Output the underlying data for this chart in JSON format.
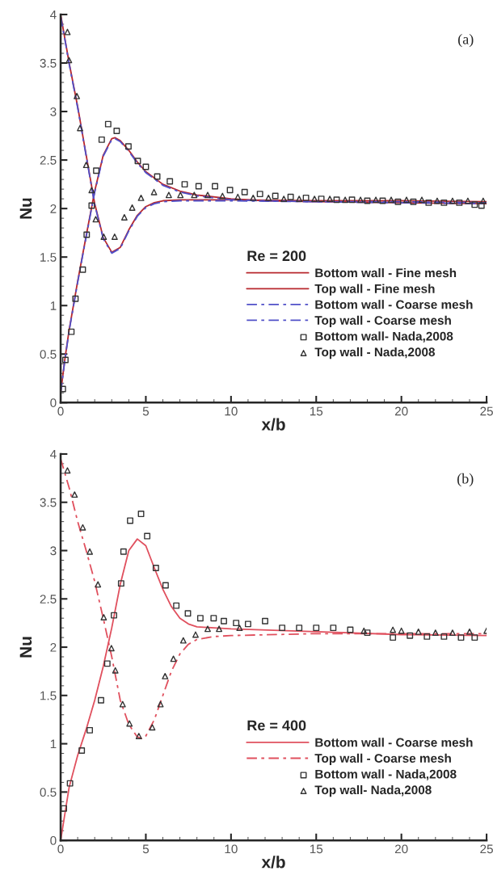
{
  "chart_data": [
    {
      "type": "line",
      "xlabel": "x/b",
      "ylabel": "Nu",
      "legend_title": "Re = 200",
      "legend": "bottom right",
      "annotations": [
        "(a)"
      ],
      "xlim": [
        0,
        25
      ],
      "ylim": [
        0,
        4
      ],
      "xticks": [
        0,
        5,
        10,
        15,
        20,
        25
      ],
      "yticks": [
        0,
        0.5,
        1,
        1.5,
        2,
        2.5,
        3,
        3.5,
        4
      ],
      "grid": false,
      "series": [
        {
          "name": "Bottom wall - Fine mesh",
          "color": "#b8282e",
          "line_style": "solid",
          "x": [
            0,
            0.25,
            0.5,
            1,
            1.5,
            2,
            2.5,
            3,
            3.2,
            3.5,
            4,
            4.5,
            5,
            6,
            7,
            8,
            10,
            12,
            15,
            20,
            25
          ],
          "values": [
            0.1,
            0.45,
            0.75,
            1.25,
            1.72,
            2.18,
            2.55,
            2.72,
            2.73,
            2.7,
            2.6,
            2.48,
            2.38,
            2.25,
            2.18,
            2.14,
            2.1,
            2.08,
            2.07,
            2.06,
            2.05
          ]
        },
        {
          "name": "Top wall - Fine mesh",
          "color": "#b8282e",
          "line_style": "solid",
          "x": [
            0,
            0.25,
            0.5,
            1,
            1.5,
            2,
            2.5,
            3,
            3.5,
            4,
            4.5,
            5,
            5.5,
            6,
            7,
            8,
            10,
            15,
            20,
            25
          ],
          "values": [
            4.0,
            3.75,
            3.5,
            3.05,
            2.55,
            2.05,
            1.7,
            1.55,
            1.6,
            1.78,
            1.93,
            2.02,
            2.06,
            2.08,
            2.09,
            2.09,
            2.09,
            2.08,
            2.08,
            2.07
          ]
        },
        {
          "name": "Bottom wall - Coarse mesh",
          "color": "#5050c8",
          "line_style": "dashed",
          "x": [
            0,
            0.25,
            0.5,
            1,
            1.5,
            2,
            2.5,
            3,
            3.2,
            3.5,
            4,
            4.5,
            5,
            6,
            7,
            8,
            10,
            12,
            15,
            20,
            25
          ],
          "values": [
            0.1,
            0.44,
            0.74,
            1.24,
            1.71,
            2.17,
            2.54,
            2.71,
            2.72,
            2.69,
            2.59,
            2.47,
            2.37,
            2.24,
            2.17,
            2.13,
            2.09,
            2.08,
            2.07,
            2.06,
            2.05
          ]
        },
        {
          "name": "Top wall - Coarse mesh",
          "color": "#5050c8",
          "line_style": "dashed",
          "x": [
            0,
            0.25,
            0.5,
            1,
            1.5,
            2,
            2.5,
            3,
            3.5,
            4,
            4.5,
            5,
            5.5,
            6,
            7,
            8,
            10,
            15,
            20,
            25
          ],
          "values": [
            3.98,
            3.74,
            3.49,
            3.04,
            2.54,
            2.04,
            1.69,
            1.54,
            1.59,
            1.77,
            1.92,
            2.01,
            2.05,
            2.07,
            2.08,
            2.08,
            2.08,
            2.07,
            2.07,
            2.06
          ]
        },
        {
          "name": "Bottom wall- Nada,2008",
          "type": "scatter",
          "marker": "square",
          "color": "#333333",
          "x": [
            0.13,
            0.28,
            0.63,
            0.87,
            1.3,
            1.53,
            1.82,
            2.09,
            2.41,
            2.79,
            3.29,
            3.98,
            4.53,
            5.0,
            5.67,
            6.41,
            7.28,
            8.1,
            9.06,
            9.94,
            10.8,
            11.7,
            12.6,
            13.5,
            14.4,
            15.3,
            16.2,
            17.1,
            18.0,
            18.9,
            19.8,
            20.7,
            21.6,
            22.5,
            23.4,
            24.3,
            24.7
          ],
          "values": [
            0.14,
            0.44,
            0.73,
            1.07,
            1.37,
            1.73,
            2.03,
            2.39,
            2.71,
            2.87,
            2.8,
            2.64,
            2.49,
            2.43,
            2.33,
            2.28,
            2.25,
            2.23,
            2.23,
            2.19,
            2.17,
            2.15,
            2.13,
            2.12,
            2.11,
            2.1,
            2.09,
            2.09,
            2.08,
            2.08,
            2.07,
            2.07,
            2.06,
            2.06,
            2.06,
            2.04,
            2.03
          ]
        },
        {
          "name": "Top wall - Nada,2008",
          "type": "scatter",
          "marker": "triangle",
          "color": "#333333",
          "x": [
            0.4,
            0.49,
            0.95,
            1.14,
            1.5,
            1.82,
            2.06,
            2.53,
            3.17,
            3.74,
            4.2,
            4.72,
            5.48,
            6.35,
            7.03,
            7.84,
            8.63,
            9.5,
            10.4,
            11.3,
            12.2,
            13.1,
            14.0,
            14.9,
            15.8,
            16.7,
            17.6,
            18.5,
            19.4,
            20.3,
            21.2,
            22.1,
            23.0,
            23.9,
            24.8
          ],
          "values": [
            3.82,
            3.53,
            3.16,
            2.83,
            2.45,
            2.19,
            1.89,
            1.71,
            1.71,
            1.91,
            2.01,
            2.11,
            2.17,
            2.14,
            2.14,
            2.14,
            2.14,
            2.13,
            2.12,
            2.11,
            2.11,
            2.1,
            2.1,
            2.1,
            2.1,
            2.09,
            2.09,
            2.09,
            2.09,
            2.09,
            2.09,
            2.08,
            2.08,
            2.08,
            2.08
          ]
        }
      ]
    },
    {
      "type": "line",
      "xlabel": "x/b",
      "ylabel": "Nu",
      "legend_title": "Re = 400",
      "legend": "bottom right",
      "annotations": [
        "(b)"
      ],
      "xlim": [
        0,
        25
      ],
      "ylim": [
        0,
        4
      ],
      "xticks": [
        0,
        5,
        10,
        15,
        20,
        25
      ],
      "yticks": [
        0,
        0.5,
        1,
        1.5,
        2,
        2.5,
        3,
        3.5,
        4
      ],
      "grid": false,
      "series": [
        {
          "name": "Bottom wall - Coarse mesh",
          "color": "#e0505e",
          "line_style": "solid",
          "x": [
            0,
            0.5,
            1,
            1.5,
            2,
            2.5,
            3,
            3.5,
            4,
            4.5,
            5,
            5.5,
            6,
            6.5,
            7,
            7.5,
            8,
            9,
            10,
            15,
            20,
            25
          ],
          "values": [
            0.0,
            0.55,
            0.88,
            1.15,
            1.45,
            1.8,
            2.2,
            2.65,
            3.0,
            3.12,
            3.05,
            2.82,
            2.6,
            2.42,
            2.3,
            2.24,
            2.21,
            2.2,
            2.19,
            2.16,
            2.13,
            2.12
          ]
        },
        {
          "name": "Top wall - Coarse mesh",
          "color": "#e0505e",
          "line_style": "dashed",
          "x": [
            0,
            0.5,
            1,
            1.5,
            2,
            2.5,
            3,
            3.5,
            4,
            4.5,
            4.8,
            5,
            5.5,
            6,
            6.5,
            7,
            7.5,
            8,
            9,
            10,
            15,
            20,
            25
          ],
          "values": [
            3.95,
            3.65,
            3.3,
            3.0,
            2.68,
            2.3,
            1.9,
            1.45,
            1.2,
            1.07,
            1.05,
            1.08,
            1.25,
            1.5,
            1.75,
            1.93,
            2.03,
            2.08,
            2.11,
            2.12,
            2.14,
            2.14,
            2.14
          ]
        },
        {
          "name": "Bottom wall - Nada,2008",
          "type": "scatter",
          "marker": "square",
          "color": "#333333",
          "x": [
            0.19,
            0.55,
            1.24,
            1.71,
            2.37,
            2.74,
            3.13,
            3.55,
            3.69,
            4.08,
            4.72,
            5.08,
            5.59,
            6.16,
            6.79,
            7.47,
            8.2,
            8.98,
            9.58,
            10.3,
            11.0,
            12.0,
            13.0,
            14.0,
            15.0,
            16.0,
            17.0,
            18.0,
            19.5,
            20.5,
            21.5,
            22.5,
            23.5,
            24.3
          ],
          "values": [
            0.33,
            0.59,
            0.93,
            1.14,
            1.45,
            1.83,
            2.33,
            2.66,
            2.99,
            3.31,
            3.38,
            3.15,
            2.82,
            2.64,
            2.43,
            2.35,
            2.3,
            2.3,
            2.27,
            2.25,
            2.24,
            2.27,
            2.2,
            2.2,
            2.2,
            2.2,
            2.18,
            2.15,
            2.1,
            2.12,
            2.11,
            2.11,
            2.1,
            2.1
          ]
        },
        {
          "name": "Top wall- Nada,2008",
          "type": "scatter",
          "marker": "triangle",
          "color": "#333333",
          "x": [
            0.4,
            0.82,
            1.3,
            1.71,
            2.19,
            2.53,
            2.98,
            3.21,
            3.64,
            4.04,
            4.59,
            5.38,
            5.86,
            6.13,
            6.62,
            7.2,
            7.92,
            8.63,
            9.3,
            10.5,
            17.8,
            19.5,
            20.0,
            21.0,
            22.0,
            23.0,
            24.0,
            25.0
          ],
          "values": [
            3.83,
            3.58,
            3.24,
            2.99,
            2.65,
            2.31,
            1.99,
            1.76,
            1.41,
            1.21,
            1.08,
            1.17,
            1.41,
            1.7,
            1.88,
            2.07,
            2.13,
            2.19,
            2.19,
            2.2,
            2.17,
            2.18,
            2.17,
            2.16,
            2.15,
            2.15,
            2.16,
            2.17
          ]
        }
      ]
    }
  ]
}
